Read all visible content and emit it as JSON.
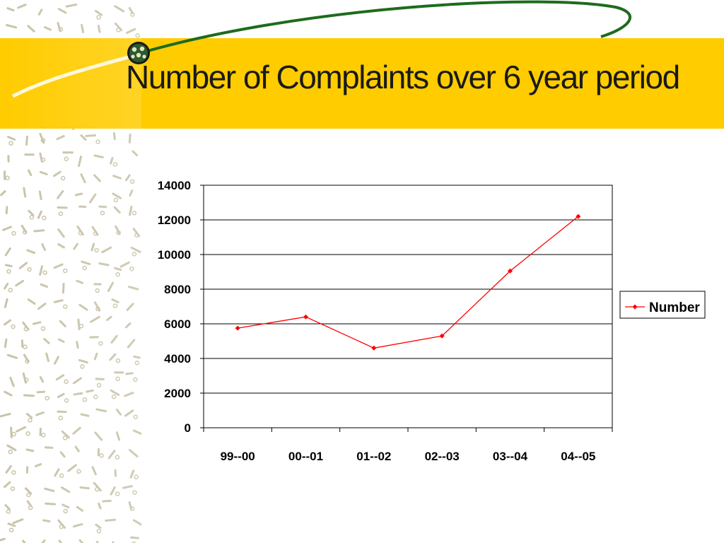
{
  "slide": {
    "title": "Number of Complaints over 6 year period"
  },
  "colors": {
    "title_bar": "#FFCC00",
    "series_line": "#FF0000",
    "swoosh": "#1E6B1E",
    "pattern": "#C9C3A8"
  },
  "chart_data": {
    "type": "line",
    "categories": [
      "99--00",
      "00--01",
      "01--02",
      "02--03",
      "03--04",
      "04--05"
    ],
    "series": [
      {
        "name": "Number",
        "values": [
          5750,
          6400,
          4600,
          5300,
          9050,
          12200
        ],
        "color": "#FF0000",
        "marker": "diamond"
      }
    ],
    "ylim": [
      0,
      14000
    ],
    "yticks": [
      0,
      2000,
      4000,
      6000,
      8000,
      10000,
      12000,
      14000
    ],
    "ytick_labels": [
      "0",
      "2000",
      "4000",
      "6000",
      "8000",
      "10000",
      "12000",
      "14000"
    ],
    "grid": true,
    "legend": "right"
  }
}
